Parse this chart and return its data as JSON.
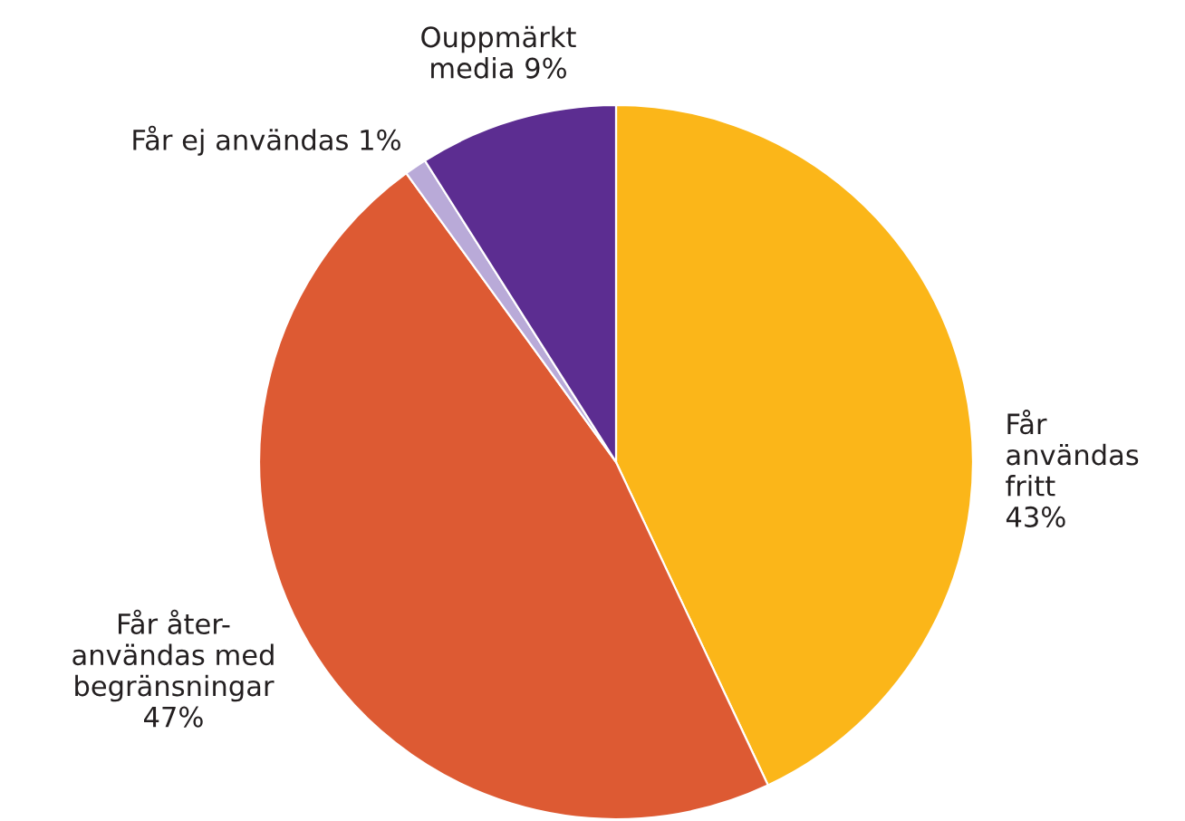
{
  "chart_data": {
    "type": "pie",
    "categories": [
      "Får\nanvändas\nfritt",
      "Får åter-\nanvändas med\nbegränsningar",
      "Får ej användas",
      "Ouppmärkt\nmedia"
    ],
    "values": [
      43,
      47,
      1,
      9
    ],
    "value_labels": [
      "43%",
      "47%",
      "1%",
      "9%"
    ],
    "colors": [
      "#fbb619",
      "#dd5a33",
      "#b9aad8",
      "#5c2d91"
    ],
    "legend": false
  }
}
